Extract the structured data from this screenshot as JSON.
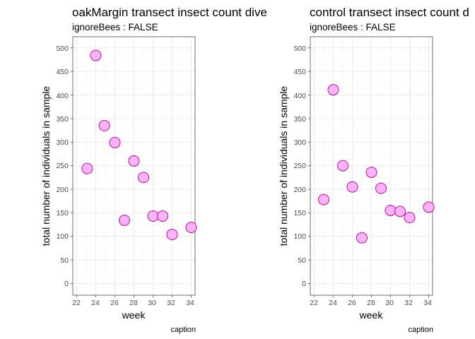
{
  "chart_data": [
    {
      "type": "scatter",
      "title": "oakMargin transect insect count dive",
      "subtitle": "ignoreBees : FALSE",
      "xlabel": "week",
      "ylabel": "total number of individuals in sample",
      "caption": "caption",
      "xlim": [
        22,
        34
      ],
      "ylim": [
        0,
        500
      ],
      "x_ticks": [
        "22",
        "24",
        "26",
        "28",
        "30",
        "32",
        "34"
      ],
      "y_ticks": [
        "0",
        "50",
        "100",
        "150",
        "200",
        "250",
        "300",
        "350",
        "400",
        "450",
        "500"
      ],
      "grid": true,
      "points": [
        {
          "x": 23.1,
          "y": 244
        },
        {
          "x": 24,
          "y": 484
        },
        {
          "x": 24.9,
          "y": 335
        },
        {
          "x": 26,
          "y": 299
        },
        {
          "x": 27,
          "y": 134
        },
        {
          "x": 28,
          "y": 260
        },
        {
          "x": 29,
          "y": 225
        },
        {
          "x": 30,
          "y": 143
        },
        {
          "x": 31,
          "y": 143
        },
        {
          "x": 32,
          "y": 104
        },
        {
          "x": 34,
          "y": 119
        }
      ]
    },
    {
      "type": "scatter",
      "title": "control transect insect count d",
      "subtitle": "ignoreBees : FALSE",
      "xlabel": "week",
      "ylabel": "total number of individuals in sample",
      "caption": "caption",
      "xlim": [
        22,
        34
      ],
      "ylim": [
        0,
        500
      ],
      "x_ticks": [
        "22",
        "24",
        "26",
        "28",
        "30",
        "32",
        "34"
      ],
      "y_ticks": [
        "0",
        "50",
        "100",
        "150",
        "200",
        "250",
        "300",
        "350",
        "400",
        "450",
        "500"
      ],
      "grid": true,
      "points": [
        {
          "x": 23,
          "y": 178
        },
        {
          "x": 24,
          "y": 411
        },
        {
          "x": 25,
          "y": 250
        },
        {
          "x": 26,
          "y": 205
        },
        {
          "x": 27,
          "y": 97
        },
        {
          "x": 28,
          "y": 236
        },
        {
          "x": 29,
          "y": 202
        },
        {
          "x": 30,
          "y": 155
        },
        {
          "x": 31,
          "y": 153
        },
        {
          "x": 32,
          "y": 140
        },
        {
          "x": 34,
          "y": 162
        }
      ]
    }
  ],
  "colors": {
    "point_fill": "#ffb3ff",
    "point_stroke": "#b3128c",
    "grid_major": "#ebebeb",
    "grid_minor": "#f5f5f5",
    "panel_border": "#333333",
    "tick_text": "#4d4d4d"
  }
}
